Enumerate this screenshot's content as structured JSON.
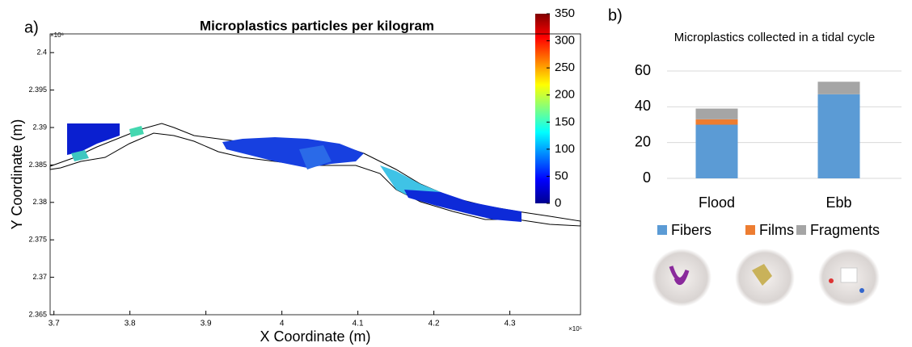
{
  "chart_data": [
    {
      "type": "map",
      "panel_label": "a)",
      "title": "Microplastics particles per kilogram",
      "x_label": "X Coordinate (m)",
      "y_label": "Y Coordinate (m)",
      "x_exponent_label": "×10⁵",
      "y_exponent_label": "×10⁶",
      "xlim": [
        3.695,
        4.393
      ],
      "xticks": [
        3.7,
        3.8,
        3.9,
        4,
        4.1,
        4.2,
        4.3
      ],
      "ylim": [
        2.365,
        2.4025
      ],
      "yticks": [
        2.365,
        2.37,
        2.375,
        2.38,
        2.385,
        2.39,
        2.395,
        2.4
      ],
      "colorbar_lim": [
        0,
        350
      ],
      "colorbar_ticks": [
        0,
        50,
        100,
        150,
        200,
        250,
        300,
        350
      ]
    },
    {
      "type": "stacked-bar",
      "panel_label": "b)",
      "title": "Microplastics collected in a tidal cycle",
      "categories": [
        "Flood",
        "Ebb"
      ],
      "series": [
        {
          "name": "Fibers",
          "color": "#5b9bd5",
          "values": [
            30,
            47
          ]
        },
        {
          "name": "Films",
          "color": "#ed7d31",
          "values": [
            3,
            0
          ]
        },
        {
          "name": "Fragments",
          "color": "#a5a5a5",
          "values": [
            6,
            7
          ]
        }
      ],
      "ylim": [
        0,
        60
      ],
      "yticks": [
        0,
        20,
        40,
        60
      ],
      "grid": true,
      "legend": "bottom"
    }
  ]
}
